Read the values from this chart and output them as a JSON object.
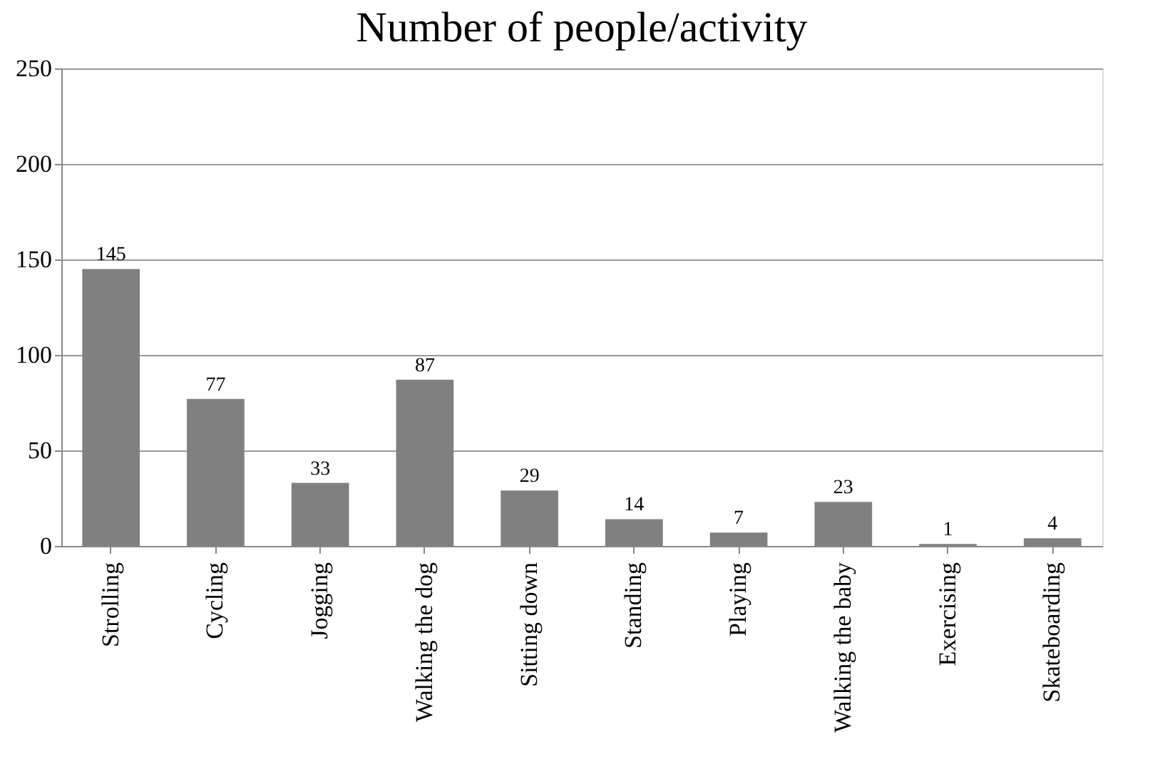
{
  "chart_data": {
    "type": "bar",
    "title": "Number of people/activity",
    "categories": [
      "Strolling",
      "Cycling",
      "Jogging",
      "Walking the dog",
      "Sitting down",
      "Standing",
      "Playing",
      "Walking the baby",
      "Exercising",
      "Skateboarding"
    ],
    "values": [
      145,
      77,
      33,
      87,
      29,
      14,
      7,
      23,
      1,
      4
    ],
    "color": "#808080",
    "ylim": [
      0,
      250
    ],
    "yticks": [
      0,
      50,
      100,
      150,
      200,
      250
    ],
    "grid": "y",
    "data_labels": true
  }
}
